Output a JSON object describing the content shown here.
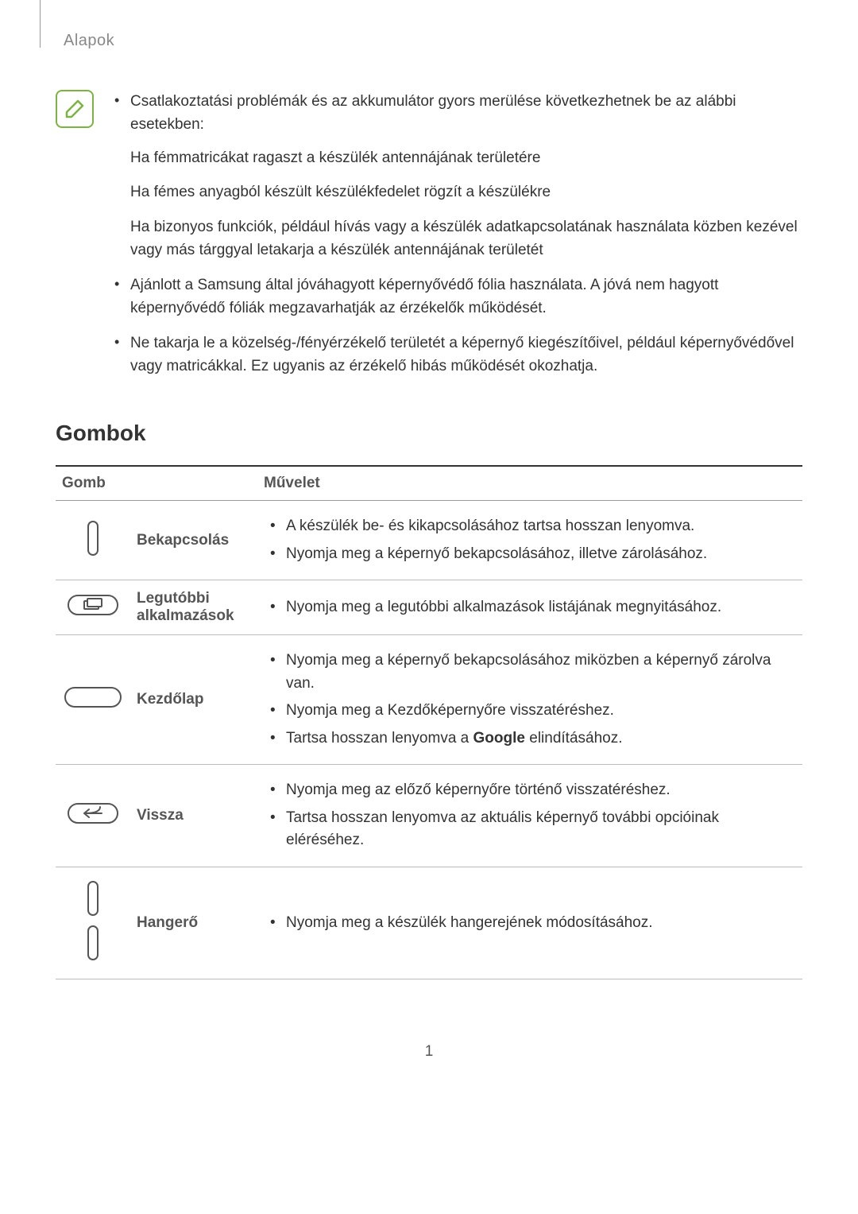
{
  "header": "Alapok",
  "note": {
    "icon_stroke": "#7cb342",
    "bullets": [
      {
        "text": "Csatlakoztatási problémák és az akkumulátor gyors merülése következhetnek be az alábbi esetekben:",
        "sub": [
          "Ha fémmatricákat ragaszt a készülék antennájának területére",
          "Ha fémes anyagból készült készülékfedelet rögzít a készülékre",
          "Ha bizonyos funkciók, például hívás vagy a készülék adatkapcsolatának használata közben kezével vagy más tárggyal letakarja a készülék antennájának területét"
        ]
      },
      {
        "text": "Ajánlott a Samsung által jóváhagyott képernyővédő fólia használata. A jóvá nem hagyott képernyővédő fóliák megzavarhatják az érzékelők működését."
      },
      {
        "text": "Ne takarja le a közelség-/fényérzékelő területét a képernyő kiegészítőivel, például képernyővédővel vagy matricákkal. Ez ugyanis az érzékelő hibás működését okozhatja."
      }
    ]
  },
  "section_title": "Gombok",
  "table": {
    "headers": {
      "button": "Gomb",
      "action": "Művelet"
    },
    "rows": [
      {
        "icon": "power",
        "label": "Bekapcsolás",
        "actions": [
          "A készülék be- és kikapcsolásához tartsa hosszan lenyomva.",
          "Nyomja meg a képernyő bekapcsolásához, illetve zárolásához."
        ]
      },
      {
        "icon": "recent",
        "label": "Legutóbbi alkalmazások",
        "actions": [
          "Nyomja meg a legutóbbi alkalmazások listájának megnyitásához."
        ]
      },
      {
        "icon": "home",
        "label": "Kezdőlap",
        "actions": [
          "Nyomja meg a képernyő bekapcsolásához miközben a képernyő zárolva van.",
          "Nyomja meg a Kezdőképernyőre visszatéréshez.",
          {
            "pre": "Tartsa hosszan lenyomva a ",
            "bold": "Google",
            "post": " elindításához."
          }
        ]
      },
      {
        "icon": "back",
        "label": "Vissza",
        "actions": [
          "Nyomja meg az előző képernyőre történő visszatéréshez.",
          "Tartsa hosszan lenyomva az aktuális képernyő további opcióinak eléréséhez."
        ]
      },
      {
        "icon": "volume",
        "label": "Hangerő",
        "actions": [
          "Nyomja meg a készülék hangerejének módosításához."
        ]
      }
    ]
  },
  "page_number": "1",
  "colors": {
    "text": "#333333",
    "muted": "#888888",
    "border": "#bbbbbb",
    "border_dark": "#333333",
    "icon_stroke": "#555555"
  }
}
